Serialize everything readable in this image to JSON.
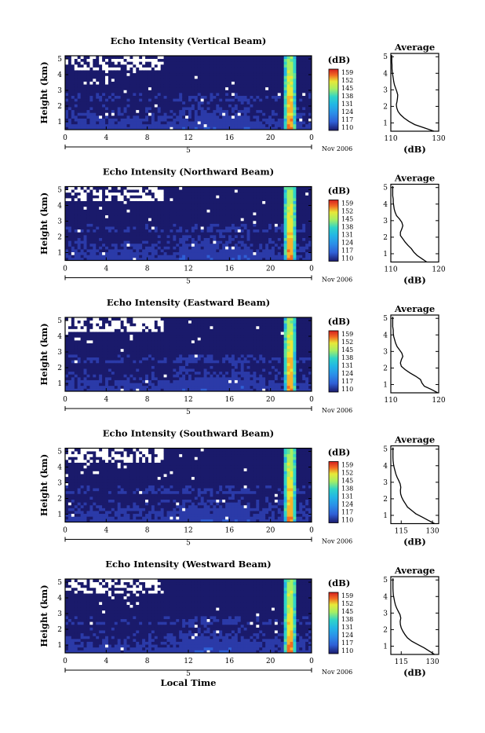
{
  "chart_data": [
    {
      "type": "heatmap",
      "title": "Echo Intensity (Vertical Beam)",
      "ylabel": "Height (km)",
      "xlabel": "",
      "x_ticks": [
        "0",
        "4",
        "8",
        "12",
        "16",
        "20",
        "0"
      ],
      "y_ticks": [
        "1",
        "2",
        "3",
        "4",
        "5"
      ],
      "xlim": [
        0,
        24
      ],
      "ylim": [
        0.5,
        5.2
      ],
      "date_day": "5",
      "date_month_year": "Nov 2006",
      "colorbar": {
        "unit": "(dB)",
        "labels": [
          "159",
          "152",
          "145",
          "138",
          "131",
          "124",
          "117",
          "110"
        ],
        "range": [
          110,
          159
        ]
      },
      "average_profile": {
        "title": "Average",
        "xlabel": "(dB)",
        "x_ticks": [
          "110",
          "130"
        ],
        "xlim": [
          110,
          130
        ],
        "y_ticks": [
          "1",
          "2",
          "3",
          "4",
          "5"
        ],
        "ylim": [
          0.5,
          5.2
        ],
        "height_km": [
          0.5,
          0.7,
          0.9,
          1.1,
          1.3,
          1.5,
          1.7,
          1.9,
          2.1,
          2.3,
          2.5,
          2.7,
          2.9,
          3.1,
          3.3,
          3.5,
          3.7,
          3.9,
          4.1,
          4.3,
          4.5,
          4.7,
          4.9,
          5.1
        ],
        "intensity_db": [
          128,
          124,
          120,
          117.5,
          115.5,
          114,
          113,
          112.5,
          112.3,
          112.6,
          112.8,
          112.9,
          112.5,
          112,
          111.5,
          111.2,
          111,
          110.8,
          110.6,
          110.5,
          110.5,
          110.4,
          110.4,
          110.4
        ]
      }
    },
    {
      "type": "heatmap",
      "title": "Echo Intensity (Northward Beam)",
      "ylabel": "Height (km)",
      "xlabel": "",
      "x_ticks": [
        "0",
        "4",
        "8",
        "12",
        "16",
        "20",
        "0"
      ],
      "y_ticks": [
        "1",
        "2",
        "3",
        "4",
        "5"
      ],
      "xlim": [
        0,
        24
      ],
      "ylim": [
        0.5,
        5.2
      ],
      "date_day": "5",
      "date_month_year": "Nov 2006",
      "colorbar": {
        "unit": "(dB)",
        "labels": [
          "159",
          "152",
          "145",
          "138",
          "131",
          "124",
          "117",
          "110"
        ],
        "range": [
          110,
          159
        ]
      },
      "average_profile": {
        "title": "Average",
        "xlabel": "(dB)",
        "x_ticks": [
          "110",
          "120"
        ],
        "xlim": [
          110,
          120
        ],
        "y_ticks": [
          "1",
          "2",
          "3",
          "4",
          "5"
        ],
        "ylim": [
          0.5,
          5.2
        ],
        "height_km": [
          0.5,
          0.7,
          0.9,
          1.1,
          1.3,
          1.5,
          1.7,
          1.9,
          2.1,
          2.3,
          2.5,
          2.7,
          2.9,
          3.1,
          3.3,
          3.5,
          3.7,
          3.9,
          4.1,
          4.3,
          4.5,
          4.7,
          4.9,
          5.1
        ],
        "intensity_db": [
          117.5,
          116.5,
          115.5,
          114.8,
          114.3,
          113.6,
          113,
          112.5,
          112,
          112,
          112.3,
          112.5,
          112.3,
          111.8,
          111.2,
          110.9,
          110.7,
          110.6,
          110.5,
          110.5,
          110.4,
          110.4,
          110.4,
          110.4
        ]
      }
    },
    {
      "type": "heatmap",
      "title": "Echo Intensity (Eastward Beam)",
      "ylabel": "Height (km)",
      "xlabel": "",
      "x_ticks": [
        "0",
        "4",
        "8",
        "12",
        "16",
        "20",
        "0"
      ],
      "y_ticks": [
        "1",
        "2",
        "3",
        "4",
        "5"
      ],
      "xlim": [
        0,
        24
      ],
      "ylim": [
        0.5,
        5.2
      ],
      "date_day": "5",
      "date_month_year": "Nov 2006",
      "colorbar": {
        "unit": "(dB)",
        "labels": [
          "159",
          "152",
          "145",
          "138",
          "131",
          "124",
          "117",
          "110"
        ],
        "range": [
          110,
          159
        ]
      },
      "average_profile": {
        "title": "Average",
        "xlabel": "",
        "x_ticks": [
          "110",
          "120"
        ],
        "xlim": [
          110,
          120
        ],
        "y_ticks": [
          "1",
          "2",
          "3",
          "4",
          "5"
        ],
        "ylim": [
          0.5,
          5.2
        ],
        "height_km": [
          0.5,
          0.7,
          0.9,
          1.1,
          1.3,
          1.5,
          1.7,
          1.9,
          2.1,
          2.3,
          2.5,
          2.7,
          2.9,
          3.1,
          3.3,
          3.5,
          3.7,
          3.9,
          4.1,
          4.3,
          4.5,
          4.7,
          4.9,
          5.1
        ],
        "intensity_db": [
          119.8,
          118.5,
          117,
          116.5,
          116.2,
          115.2,
          114,
          113,
          112.2,
          112,
          112.2,
          112.5,
          112.3,
          111.8,
          111.3,
          111,
          110.8,
          110.6,
          110.5,
          110.5,
          110.4,
          110.4,
          110.4,
          110.4
        ]
      }
    },
    {
      "type": "heatmap",
      "title": "Echo Intensity (Southward Beam)",
      "ylabel": "Height (km)",
      "xlabel": "",
      "x_ticks": [
        "0",
        "4",
        "8",
        "12",
        "16",
        "20",
        "0"
      ],
      "y_ticks": [
        "1",
        "2",
        "3",
        "4",
        "5"
      ],
      "xlim": [
        0,
        24
      ],
      "ylim": [
        0.5,
        5.2
      ],
      "date_day": "5",
      "date_month_year": "Nov 2006",
      "colorbar": {
        "unit": "(dB)",
        "labels": [
          "159",
          "152",
          "145",
          "138",
          "131",
          "124",
          "117",
          "110"
        ],
        "range": [
          110,
          159
        ]
      },
      "average_profile": {
        "title": "Average",
        "xlabel": "(dB)",
        "x_ticks": [
          "115",
          "130"
        ],
        "xlim": [
          110,
          133
        ],
        "y_ticks": [
          "1",
          "2",
          "3",
          "4",
          "5"
        ],
        "ylim": [
          0.5,
          5.2
        ],
        "height_km": [
          0.5,
          0.7,
          0.9,
          1.1,
          1.3,
          1.5,
          1.7,
          1.9,
          2.1,
          2.3,
          2.5,
          2.7,
          2.9,
          3.1,
          3.3,
          3.5,
          3.7,
          3.9,
          4.1,
          4.3,
          4.5,
          4.7,
          4.9,
          5.1
        ],
        "intensity_db": [
          131,
          128,
          125,
          122,
          120,
          118,
          117,
          116,
          115.2,
          114.7,
          114.6,
          114.8,
          114.5,
          113.8,
          113,
          112.4,
          112,
          111.6,
          111.3,
          111.1,
          111,
          111,
          111,
          111
        ]
      }
    },
    {
      "type": "heatmap",
      "title": "Echo Intensity (Westward Beam)",
      "ylabel": "Height (km)",
      "xlabel": "Local Time",
      "x_ticks": [
        "0",
        "4",
        "8",
        "12",
        "16",
        "20",
        "0"
      ],
      "y_ticks": [
        "1",
        "2",
        "3",
        "4",
        "5"
      ],
      "xlim": [
        0,
        24
      ],
      "ylim": [
        0.5,
        5.2
      ],
      "date_day": "5",
      "date_month_year": "Nov 2006",
      "colorbar": {
        "unit": "(dB)",
        "labels": [
          "159",
          "152",
          "145",
          "138",
          "131",
          "124",
          "117",
          "110"
        ],
        "range": [
          110,
          159
        ]
      },
      "average_profile": {
        "title": "Average",
        "xlabel": "(dB)",
        "x_ticks": [
          "115",
          "130"
        ],
        "xlim": [
          110,
          133
        ],
        "y_ticks": [
          "1",
          "2",
          "3",
          "4",
          "5"
        ],
        "ylim": [
          0.5,
          5.2
        ],
        "height_km": [
          0.5,
          0.7,
          0.9,
          1.1,
          1.3,
          1.5,
          1.7,
          1.9,
          2.1,
          2.3,
          2.5,
          2.7,
          2.9,
          3.1,
          3.3,
          3.5,
          3.7,
          3.9,
          4.1,
          4.3,
          4.5,
          4.7,
          4.9,
          5.1
        ],
        "intensity_db": [
          131,
          128.5,
          126,
          123,
          120,
          118,
          116.8,
          115.8,
          115,
          114.6,
          114.5,
          114.8,
          114.4,
          113.6,
          112.8,
          112.2,
          111.8,
          111.5,
          111.2,
          111.1,
          111,
          111,
          111,
          111
        ]
      }
    }
  ],
  "colormap": [
    "#1a1a6b",
    "#2b3aa8",
    "#2f5fd6",
    "#2b8ee8",
    "#22b5e6",
    "#2fd4c8",
    "#5fe39a",
    "#a8ef62",
    "#e8e838",
    "#f5b42c",
    "#f26a22",
    "#d42020"
  ]
}
